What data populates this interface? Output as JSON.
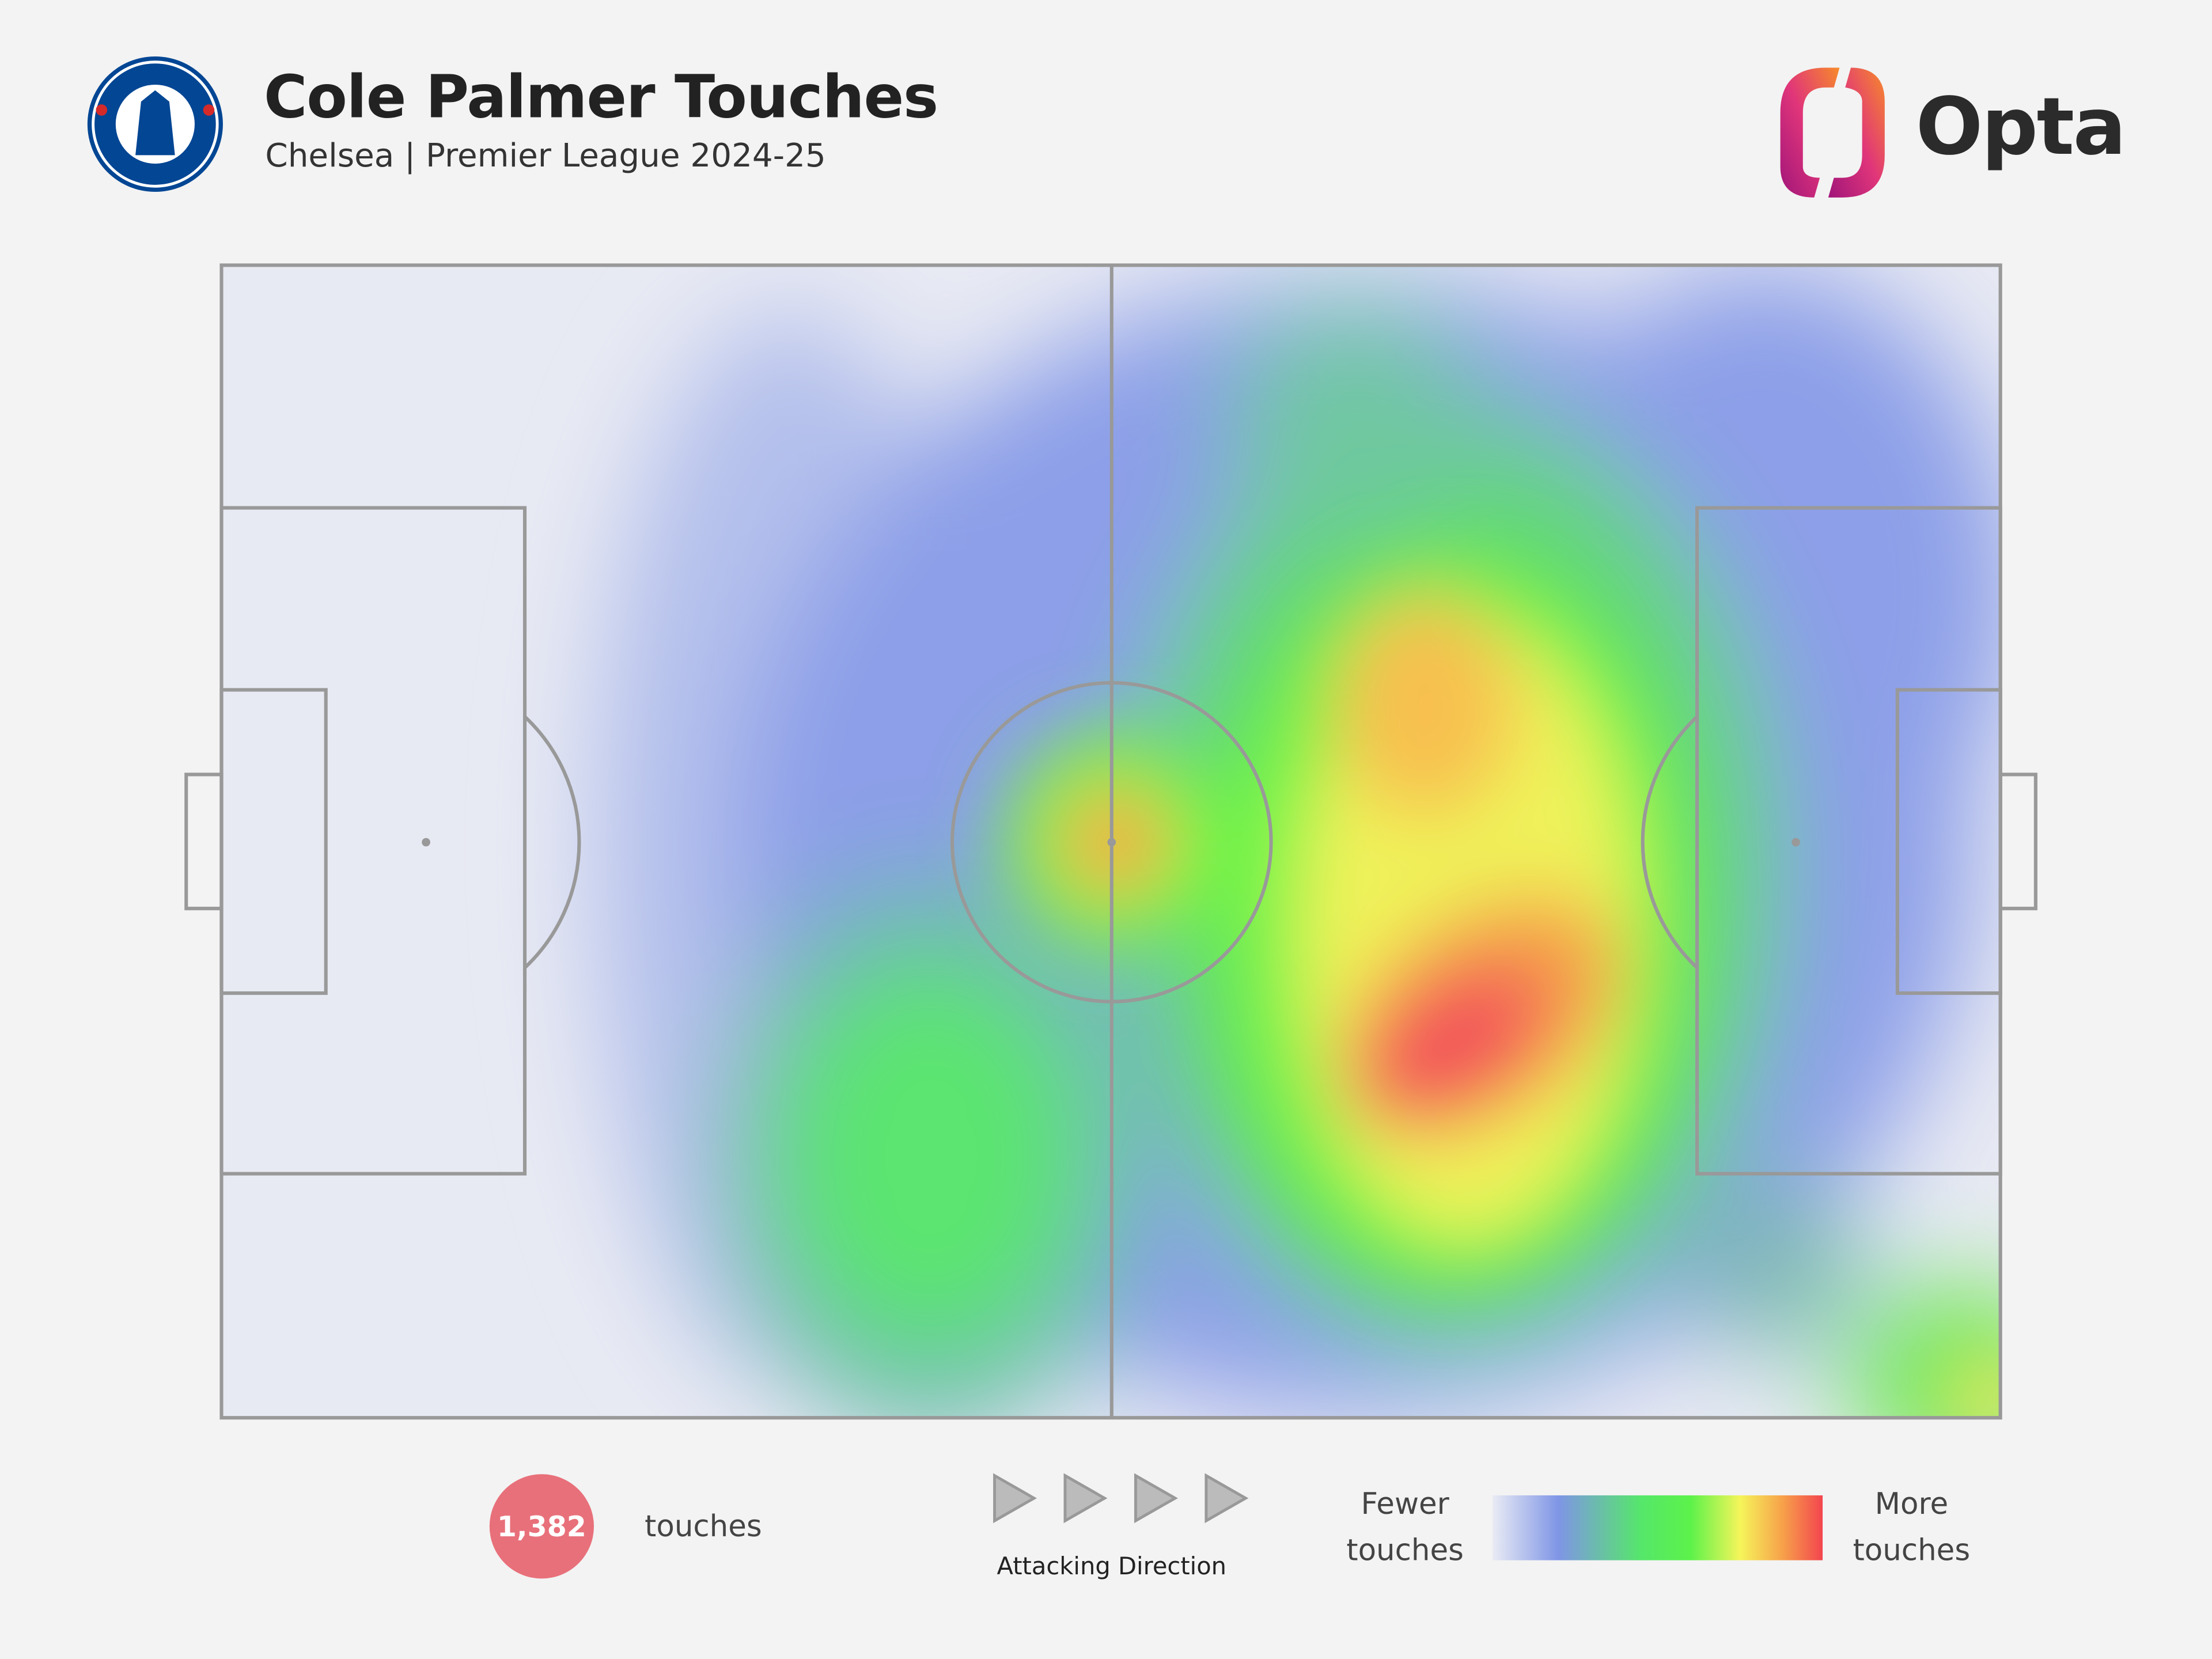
{
  "header": {
    "title": "Cole Palmer Touches",
    "subtitle": "Chelsea | Premier League 2024-25",
    "brand": "Opta"
  },
  "stat": {
    "value": "1,382",
    "label": "touches"
  },
  "direction": "Attacking Direction",
  "legend": {
    "low": "Fewer touches",
    "high": "More touches"
  }
}
